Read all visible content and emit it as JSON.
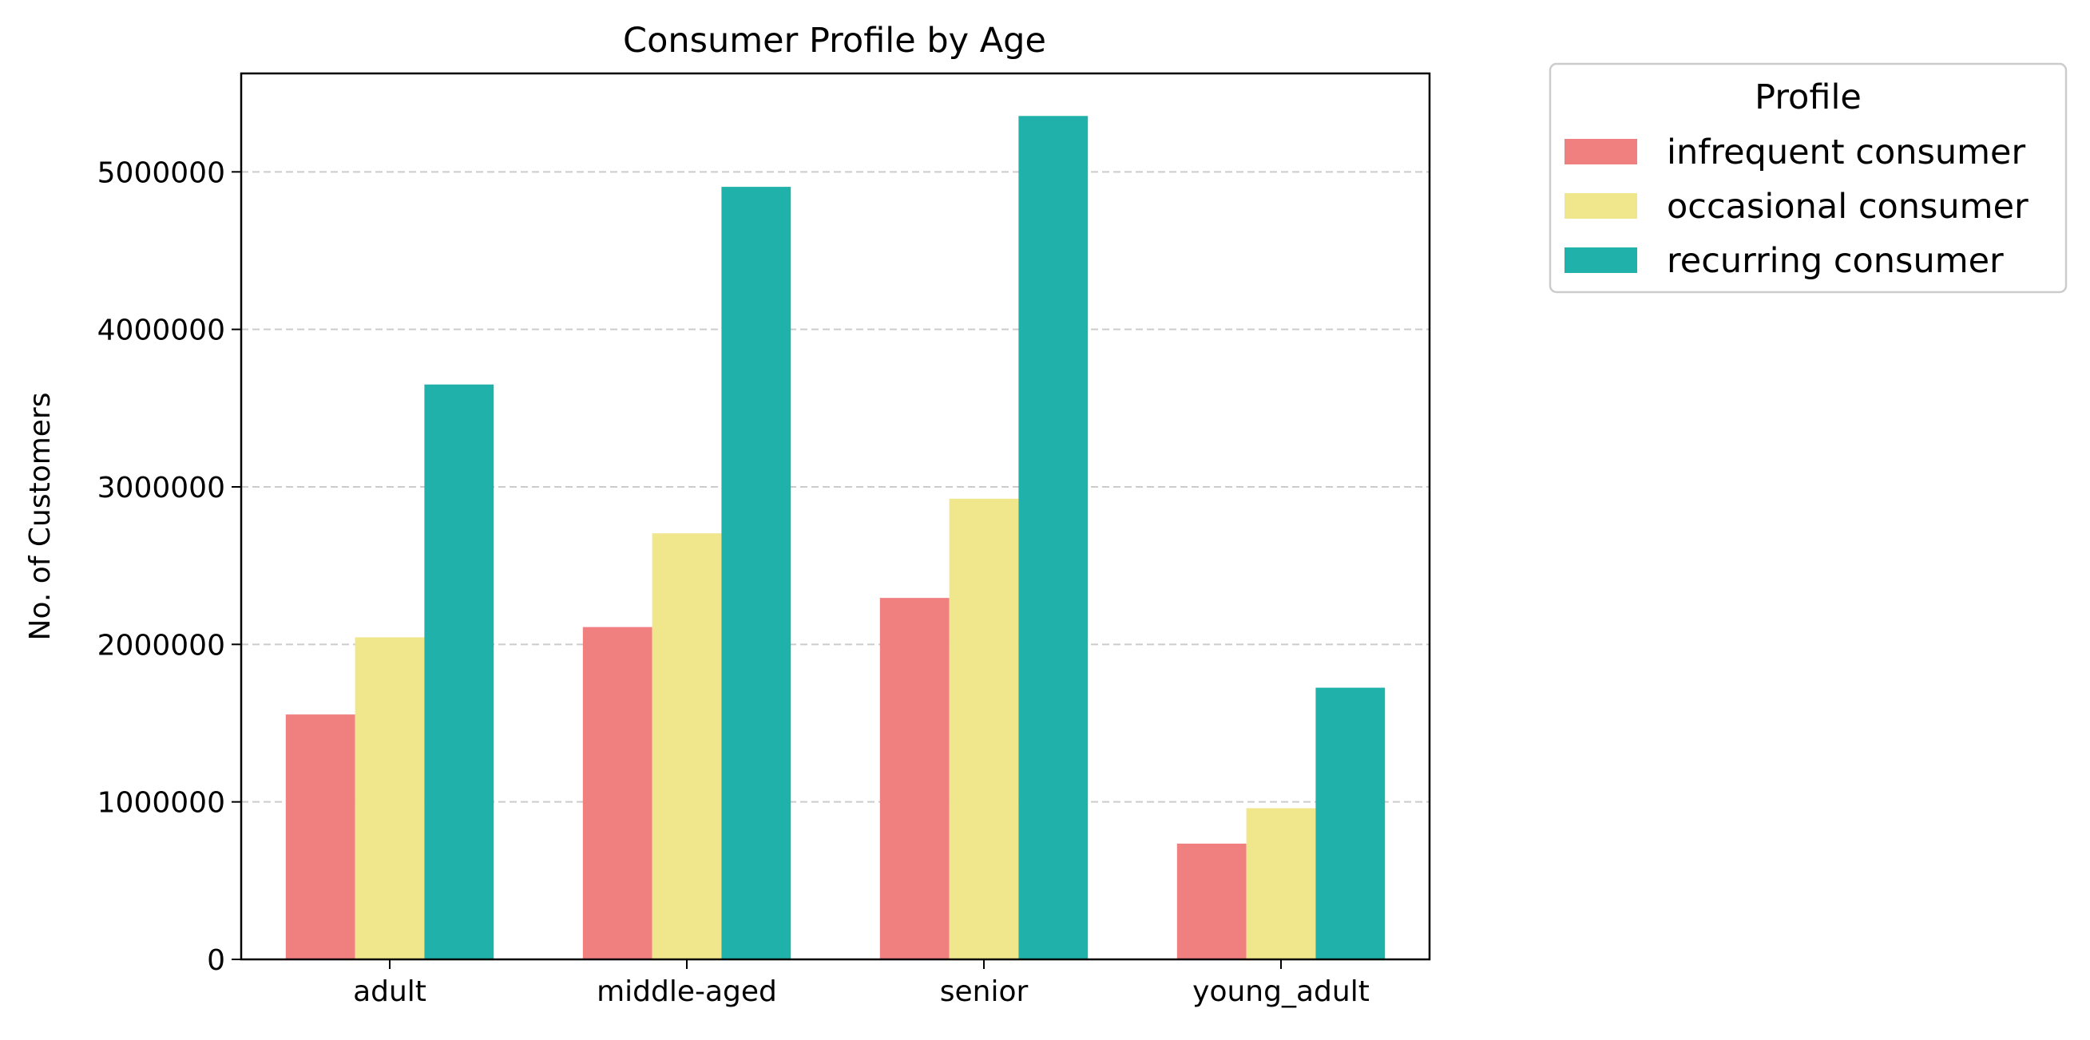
{
  "chart_data": {
    "type": "bar",
    "title": "Consumer Profile by Age",
    "xlabel": "",
    "ylabel": "No. of Customers",
    "categories": [
      "adult",
      "middle-aged",
      "senior",
      "young_adult"
    ],
    "series": [
      {
        "name": "infrequent consumer",
        "color": "#f08080",
        "values": [
          1555000,
          2110000,
          2295000,
          735000
        ]
      },
      {
        "name": "occasional consumer",
        "color": "#f0e68c",
        "values": [
          2045000,
          2705000,
          2925000,
          960000
        ]
      },
      {
        "name": "recurring consumer",
        "color": "#20b2aa",
        "values": [
          3650000,
          4905000,
          5355000,
          1725000
        ]
      }
    ],
    "ylim": [
      0,
      5625000
    ],
    "yticks": [
      0,
      1000000,
      2000000,
      3000000,
      4000000,
      5000000
    ],
    "ytick_labels": [
      "0",
      "1000000",
      "2000000",
      "3000000",
      "4000000",
      "5000000"
    ],
    "grid": {
      "axis": "y",
      "style": "dashed",
      "color": "#cccccc"
    },
    "legend": {
      "title": "Profile",
      "placement": "outside-top-right"
    }
  }
}
